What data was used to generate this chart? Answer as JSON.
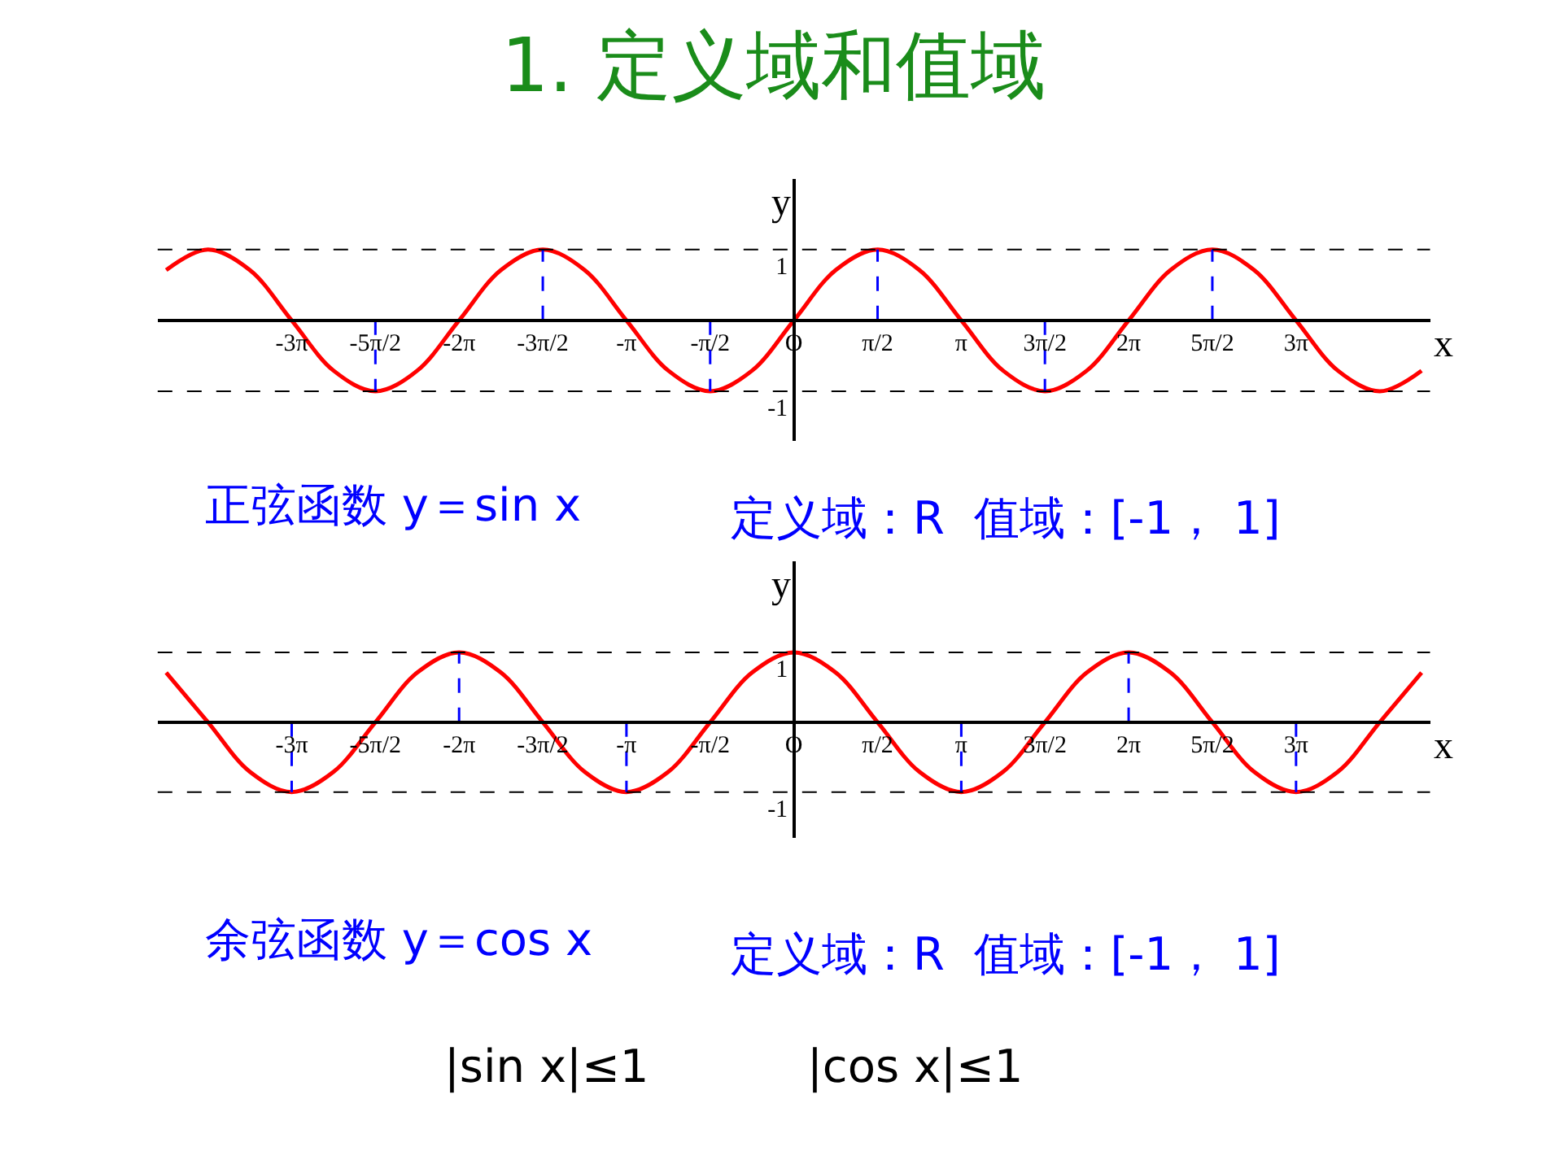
{
  "chart_data": [
    {
      "type": "line",
      "title": "1. 定义域和值域",
      "xlabel": "x",
      "ylabel": "y",
      "x": [
        -11.781,
        -10.996,
        -10.21,
        -9.425,
        -8.639,
        -7.854,
        -7.069,
        -6.283,
        -5.498,
        -4.712,
        -3.927,
        -3.142,
        -2.356,
        -1.571,
        -0.785,
        0,
        0.785,
        1.571,
        2.356,
        3.142,
        3.927,
        4.712,
        5.498,
        6.283,
        7.069,
        7.854,
        8.639,
        9.425,
        10.21,
        10.996,
        11.781
      ],
      "series": [
        {
          "color": "#ff0000",
          "values": [
            0.71,
            1,
            0.71,
            0,
            -0.71,
            -1,
            -0.71,
            0,
            0.71,
            1,
            0.71,
            0,
            -0.71,
            -1,
            -0.71,
            0,
            0.71,
            1,
            0.71,
            0,
            -0.71,
            -1,
            -0.71,
            0,
            0.71,
            1,
            0.71,
            0,
            -0.71,
            -1,
            -0.71
          ]
        },
        {
          "color": "#0000ff",
          "line_style": "dashed",
          "x": [
            -7.854,
            -7.854
          ],
          "values": [
            0,
            -1
          ]
        },
        {
          "color": "#0000ff",
          "line_style": "dashed",
          "x": [
            -4.712,
            -4.712
          ],
          "values": [
            0,
            1
          ]
        },
        {
          "color": "#0000ff",
          "line_style": "dashed",
          "x": [
            -1.571,
            -1.571
          ],
          "values": [
            0,
            -1
          ]
        },
        {
          "color": "#0000ff",
          "line_style": "dashed",
          "x": [
            1.571,
            1.571
          ],
          "values": [
            0,
            1
          ]
        },
        {
          "color": "#0000ff",
          "line_style": "dashed",
          "x": [
            4.712,
            4.712
          ],
          "values": [
            0,
            -1
          ]
        },
        {
          "color": "#0000ff",
          "line_style": "dashed",
          "x": [
            7.854,
            7.854
          ],
          "values": [
            0,
            1
          ]
        }
      ],
      "xlim": [
        -11.94,
        11.94
      ],
      "ylim": [
        -1.7,
        2.0
      ],
      "xticks": [
        {
          "value": -9.425,
          "label": "-3π"
        },
        {
          "value": -7.854,
          "label": "-5π/2"
        },
        {
          "value": -6.283,
          "label": "-2π"
        },
        {
          "value": -4.712,
          "label": "-3π/2"
        },
        {
          "value": -3.142,
          "label": "-π"
        },
        {
          "value": -1.571,
          "label": "-π/2"
        },
        {
          "value": 0,
          "label": "O"
        },
        {
          "value": 1.571,
          "label": "π/2"
        },
        {
          "value": 3.142,
          "label": "π"
        },
        {
          "value": 4.712,
          "label": "3π/2"
        },
        {
          "value": 6.283,
          "label": "2π"
        },
        {
          "value": 7.854,
          "label": "5π/2"
        },
        {
          "value": 9.425,
          "label": "3π"
        }
      ],
      "yticks": [
        -1,
        1
      ],
      "ref_lines": [
        {
          "axis": "y",
          "value": 1,
          "color": "#000000",
          "line_style": "dashed"
        },
        {
          "axis": "y",
          "value": -1,
          "color": "#000000",
          "line_style": "dashed"
        }
      ],
      "annotations": [
        "正弦函数 y＝sin x",
        "定义域：R  值域：[-1， 1]"
      ]
    },
    {
      "type": "line",
      "xlabel": "x",
      "ylabel": "y",
      "x": [
        -11.781,
        -10.996,
        -10.21,
        -9.425,
        -8.639,
        -7.854,
        -7.069,
        -6.283,
        -5.498,
        -4.712,
        -3.927,
        -3.142,
        -2.356,
        -1.571,
        -0.785,
        0,
        0.785,
        1.571,
        2.356,
        3.142,
        3.927,
        4.712,
        5.498,
        6.283,
        7.069,
        7.854,
        8.639,
        9.425,
        10.21,
        10.996,
        11.781
      ],
      "series": [
        {
          "color": "#ff0000",
          "values": [
            0.71,
            0,
            -0.71,
            -1,
            -0.71,
            0,
            0.71,
            1,
            0.71,
            0,
            -0.71,
            -1,
            -0.71,
            0,
            0.71,
            1,
            0.71,
            0,
            -0.71,
            -1,
            -0.71,
            0,
            0.71,
            1,
            0.71,
            0,
            -0.71,
            -1,
            -0.71,
            0,
            0.71
          ]
        },
        {
          "color": "#0000ff",
          "line_style": "dashed",
          "x": [
            -9.425,
            -9.425
          ],
          "values": [
            0,
            -1
          ]
        },
        {
          "color": "#0000ff",
          "line_style": "dashed",
          "x": [
            -6.283,
            -6.283
          ],
          "values": [
            0,
            1
          ]
        },
        {
          "color": "#0000ff",
          "line_style": "dashed",
          "x": [
            -3.142,
            -3.142
          ],
          "values": [
            0,
            -1
          ]
        },
        {
          "color": "#0000ff",
          "line_style": "dashed",
          "x": [
            3.142,
            3.142
          ],
          "values": [
            0,
            -1
          ]
        },
        {
          "color": "#0000ff",
          "line_style": "dashed",
          "x": [
            6.283,
            6.283
          ],
          "values": [
            0,
            1
          ]
        },
        {
          "color": "#0000ff",
          "line_style": "dashed",
          "x": [
            9.425,
            9.425
          ],
          "values": [
            0,
            -1
          ]
        }
      ],
      "xlim": [
        -11.94,
        11.94
      ],
      "ylim": [
        -1.65,
        2.3
      ],
      "xticks": [
        {
          "value": -9.425,
          "label": "-3π"
        },
        {
          "value": -7.854,
          "label": "-5π/2"
        },
        {
          "value": -6.283,
          "label": "-2π"
        },
        {
          "value": -4.712,
          "label": "-3π/2"
        },
        {
          "value": -3.142,
          "label": "-π"
        },
        {
          "value": -1.571,
          "label": "-π/2"
        },
        {
          "value": 0,
          "label": "O"
        },
        {
          "value": 1.571,
          "label": "π/2"
        },
        {
          "value": 3.142,
          "label": "π"
        },
        {
          "value": 4.712,
          "label": "3π/2"
        },
        {
          "value": 6.283,
          "label": "2π"
        },
        {
          "value": 7.854,
          "label": "5π/2"
        },
        {
          "value": 9.425,
          "label": "3π"
        }
      ],
      "yticks": [
        -1,
        1
      ],
      "ref_lines": [
        {
          "axis": "y",
          "value": 1,
          "color": "#000000",
          "line_style": "dashed"
        },
        {
          "axis": "y",
          "value": -1,
          "color": "#000000",
          "line_style": "dashed"
        }
      ],
      "annotations": [
        "余弦函数 y＝cos x",
        "定义域：R  值域：[-1， 1]",
        "|sin x|≤1",
        "|cos x|≤1"
      ]
    }
  ]
}
